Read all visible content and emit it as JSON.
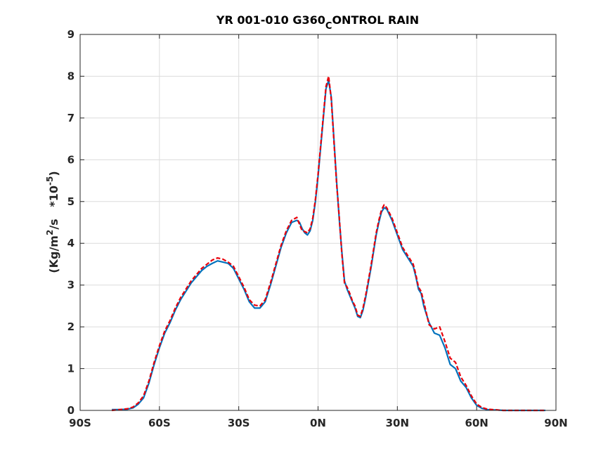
{
  "chart_data": {
    "type": "line",
    "title_main": "YR 001-010 G360",
    "title_sub": "C",
    "title_tail": "ONTROL RAIN",
    "ylabel_prefix": "(Kg/m",
    "ylabel_exp1": "2",
    "ylabel_mid": "/s   *10",
    "ylabel_exp2": "-5",
    "ylabel_suffix": ")",
    "xlim": [
      -90,
      90
    ],
    "ylim": [
      0,
      9
    ],
    "grid": true,
    "xticks": [
      -90,
      -60,
      -30,
      0,
      30,
      60,
      90
    ],
    "xtick_labels": [
      "90S",
      "60S",
      "30S",
      "0N",
      "30N",
      "60N",
      "90N"
    ],
    "yticks": [
      0,
      1,
      2,
      3,
      4,
      5,
      6,
      7,
      8,
      9
    ],
    "ytick_labels": [
      "0",
      "1",
      "2",
      "3",
      "4",
      "5",
      "6",
      "7",
      "8",
      "9"
    ],
    "series": [
      {
        "color": "#0072bd",
        "style": "solid",
        "x": [
          -78,
          -75,
          -72,
          -70,
          -68,
          -66,
          -64,
          -62,
          -60,
          -58,
          -56,
          -54,
          -52,
          -50,
          -48,
          -46,
          -44,
          -42,
          -40,
          -38,
          -36,
          -34,
          -32,
          -30,
          -28,
          -26,
          -24,
          -22,
          -20,
          -18,
          -16,
          -14,
          -12,
          -10,
          -8,
          -7,
          -6,
          -5,
          -4,
          -3,
          -2,
          -1,
          0,
          1,
          2,
          3,
          4,
          5,
          6,
          7,
          8,
          9,
          10,
          11,
          12,
          13,
          14,
          15,
          16,
          17,
          18,
          19,
          20,
          21,
          22,
          23,
          24,
          25,
          26,
          28,
          30,
          32,
          34,
          36,
          37,
          38,
          39,
          40,
          42,
          44,
          46,
          48,
          50,
          52,
          54,
          56,
          58,
          60,
          62,
          64,
          66,
          68,
          70,
          72,
          74,
          76,
          78,
          80,
          82,
          84,
          86
        ],
        "y": [
          0.02,
          0.02,
          0.03,
          0.06,
          0.15,
          0.3,
          0.65,
          1.1,
          1.5,
          1.85,
          2.1,
          2.4,
          2.65,
          2.85,
          3.05,
          3.2,
          3.35,
          3.45,
          3.52,
          3.58,
          3.55,
          3.52,
          3.4,
          3.15,
          2.9,
          2.6,
          2.45,
          2.45,
          2.6,
          3.0,
          3.45,
          3.9,
          4.25,
          4.5,
          4.55,
          4.5,
          4.35,
          4.25,
          4.2,
          4.3,
          4.55,
          5.0,
          5.6,
          6.3,
          7.0,
          7.7,
          7.9,
          7.5,
          6.5,
          5.5,
          4.6,
          3.8,
          3.1,
          2.9,
          2.75,
          2.6,
          2.45,
          2.25,
          2.22,
          2.4,
          2.7,
          3.05,
          3.4,
          3.8,
          4.2,
          4.5,
          4.75,
          4.85,
          4.82,
          4.55,
          4.2,
          3.85,
          3.65,
          3.45,
          3.2,
          2.9,
          2.8,
          2.5,
          2.1,
          1.85,
          1.8,
          1.5,
          1.1,
          1.0,
          0.7,
          0.55,
          0.3,
          0.12,
          0.05,
          0.02,
          0.01,
          0.01,
          0.0,
          0.0,
          0.0,
          0.0,
          0.0,
          0.0,
          0.0,
          0.0,
          0.0
        ]
      },
      {
        "color": "#e8000b",
        "style": "dashed",
        "x": [
          -78,
          -75,
          -72,
          -70,
          -68,
          -66,
          -64,
          -62,
          -60,
          -58,
          -56,
          -54,
          -52,
          -50,
          -48,
          -46,
          -44,
          -42,
          -40,
          -38,
          -36,
          -34,
          -32,
          -30,
          -28,
          -26,
          -24,
          -22,
          -20,
          -18,
          -16,
          -14,
          -12,
          -10,
          -8,
          -7,
          -6,
          -5,
          -4,
          -3,
          -2,
          -1,
          0,
          1,
          2,
          3,
          4,
          5,
          6,
          7,
          8,
          9,
          10,
          11,
          12,
          13,
          14,
          15,
          16,
          17,
          18,
          19,
          20,
          21,
          22,
          23,
          24,
          25,
          26,
          28,
          30,
          32,
          34,
          36,
          37,
          38,
          39,
          40,
          42,
          44,
          46,
          48,
          50,
          52,
          54,
          56,
          58,
          60,
          62,
          64,
          66,
          68,
          70,
          72,
          74,
          76,
          78,
          80,
          82,
          84,
          86
        ],
        "y": [
          0.0,
          0.02,
          0.04,
          0.08,
          0.18,
          0.35,
          0.7,
          1.15,
          1.55,
          1.9,
          2.15,
          2.45,
          2.7,
          2.9,
          3.1,
          3.25,
          3.4,
          3.5,
          3.6,
          3.65,
          3.62,
          3.55,
          3.45,
          3.2,
          2.95,
          2.65,
          2.52,
          2.5,
          2.65,
          3.05,
          3.5,
          3.95,
          4.3,
          4.55,
          4.62,
          4.45,
          4.3,
          4.28,
          4.25,
          4.35,
          4.6,
          5.05,
          5.65,
          6.35,
          7.05,
          7.75,
          8.0,
          7.45,
          6.45,
          5.45,
          4.65,
          3.75,
          3.05,
          2.95,
          2.8,
          2.62,
          2.5,
          2.28,
          2.25,
          2.45,
          2.75,
          3.1,
          3.45,
          3.85,
          4.25,
          4.55,
          4.8,
          4.92,
          4.85,
          4.6,
          4.25,
          3.9,
          3.7,
          3.5,
          3.25,
          2.95,
          2.85,
          2.6,
          2.05,
          1.95,
          2.0,
          1.65,
          1.25,
          1.15,
          0.8,
          0.6,
          0.35,
          0.15,
          0.07,
          0.03,
          0.02,
          0.01,
          0.0,
          0.0,
          0.0,
          0.0,
          0.0,
          0.0,
          0.0,
          0.0,
          0.0
        ]
      }
    ]
  }
}
